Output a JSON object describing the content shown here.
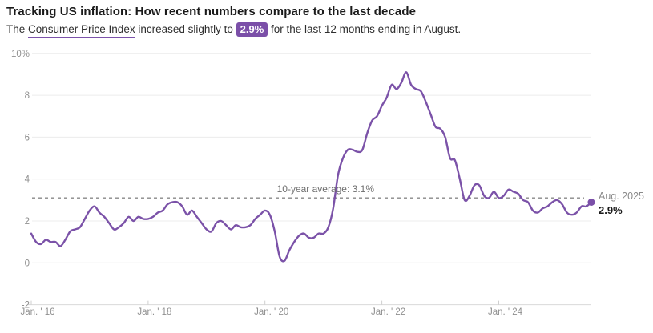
{
  "header": {
    "title": "Tracking US inflation: How recent numbers compare to the last decade",
    "subtitle_prefix": "The ",
    "cpi_link_text": "Consumer Price Index",
    "subtitle_mid": " increased slightly to ",
    "badge_value": "2.9%",
    "subtitle_suffix": " for the last 12 months ending in August."
  },
  "chart_data": {
    "type": "line",
    "title": "Tracking US inflation: How recent numbers compare to the last decade",
    "series_name": "Consumer Price Index, 12-month % change",
    "frequency": "monthly",
    "x_start": "Jan 2016",
    "x_end": "Aug 2025",
    "ylim": [
      -2,
      10
    ],
    "grid": true,
    "values": [
      1.4,
      1.0,
      0.9,
      1.1,
      1.0,
      1.0,
      0.8,
      1.1,
      1.5,
      1.6,
      1.7,
      2.1,
      2.5,
      2.7,
      2.4,
      2.2,
      1.9,
      1.6,
      1.7,
      1.9,
      2.2,
      2.0,
      2.2,
      2.1,
      2.1,
      2.2,
      2.4,
      2.5,
      2.8,
      2.9,
      2.9,
      2.7,
      2.3,
      2.5,
      2.2,
      1.9,
      1.6,
      1.5,
      1.9,
      2.0,
      1.8,
      1.6,
      1.8,
      1.7,
      1.7,
      1.8,
      2.1,
      2.3,
      2.5,
      2.3,
      1.5,
      0.3,
      0.1,
      0.6,
      1.0,
      1.3,
      1.4,
      1.2,
      1.2,
      1.4,
      1.4,
      1.7,
      2.6,
      4.2,
      5.0,
      5.4,
      5.4,
      5.3,
      5.4,
      6.2,
      6.8,
      7.0,
      7.5,
      7.9,
      8.5,
      8.3,
      8.6,
      9.1,
      8.5,
      8.3,
      8.2,
      7.7,
      7.1,
      6.5,
      6.4,
      6.0,
      5.0,
      4.9,
      4.0,
      3.0,
      3.2,
      3.7,
      3.7,
      3.2,
      3.1,
      3.4,
      3.1,
      3.2,
      3.5,
      3.4,
      3.3,
      3.0,
      2.9,
      2.5,
      2.4,
      2.6,
      2.7,
      2.9,
      3.0,
      2.8,
      2.4,
      2.3,
      2.4,
      2.7,
      2.7,
      2.9
    ],
    "yticks": [
      {
        "value": 10,
        "label": "10%"
      },
      {
        "value": 8,
        "label": "8"
      },
      {
        "value": 6,
        "label": "6"
      },
      {
        "value": 4,
        "label": "4"
      },
      {
        "value": 2,
        "label": "2"
      },
      {
        "value": 0,
        "label": "0"
      },
      {
        "value": -2,
        "label": "-2"
      }
    ],
    "xticks": [
      {
        "month_index": 0,
        "label": "Jan. ' 16"
      },
      {
        "month_index": 24,
        "label": "Jan. ' 18"
      },
      {
        "month_index": 48,
        "label": "Jan. ' 20"
      },
      {
        "month_index": 72,
        "label": "Jan. ' 22"
      },
      {
        "month_index": 96,
        "label": "Jan. ' 24"
      }
    ],
    "average_line": {
      "value": 3.1,
      "label": "10-year average: 3.1%"
    },
    "end_label": {
      "date": "Aug. 2025",
      "value": "2.9%"
    },
    "legend_position": "none",
    "colors": {
      "line": "#7b52a8",
      "dot": "#7b4fa8",
      "grid": "#ececec",
      "axis": "#d9d9d9",
      "tick": "#cfcfcf",
      "dashed": "#888888",
      "tick_text": "#8f8f8f",
      "accent": "#7b4fa8"
    }
  }
}
